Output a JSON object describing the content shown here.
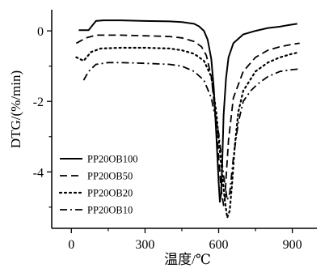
{
  "chart_data": {
    "type": "line",
    "title": "",
    "xlabel": "温度/℃",
    "ylabel": "DTG/(%/min)",
    "xlim": [
      -80,
      1000
    ],
    "ylim": [
      -5.6,
      0.6
    ],
    "xticks": [
      0,
      300,
      600,
      900
    ],
    "yticks": [
      0,
      -2,
      -4
    ],
    "grid": false,
    "legend_position": "bottom-left",
    "colors": {
      "line": "#000000",
      "axis": "#000000",
      "background": "#ffffff"
    },
    "series": [
      {
        "name": "PP20OB100",
        "dash": "solid",
        "x": [
          30,
          70,
          100,
          130,
          200,
          300,
          400,
          450,
          500,
          520,
          540,
          555,
          570,
          580,
          590,
          600,
          605,
          610,
          615,
          620,
          630,
          640,
          660,
          700,
          750,
          800,
          850,
          880,
          900,
          920
        ],
        "y": [
          0.02,
          0.02,
          0.28,
          0.3,
          0.3,
          0.28,
          0.27,
          0.25,
          0.2,
          0.13,
          0.0,
          -0.25,
          -0.8,
          -1.6,
          -2.9,
          -4.3,
          -4.85,
          -4.6,
          -3.6,
          -2.4,
          -1.35,
          -0.75,
          -0.35,
          -0.1,
          0.0,
          0.08,
          0.12,
          0.16,
          0.18,
          0.2
        ]
      },
      {
        "name": "PP20OB50",
        "dash": "dashed",
        "x": [
          20,
          60,
          100,
          200,
          300,
          400,
          450,
          500,
          530,
          550,
          570,
          590,
          600,
          610,
          620,
          625,
          630,
          640,
          660,
          700,
          750,
          800,
          850,
          900,
          930
        ],
        "y": [
          -0.35,
          -0.2,
          -0.12,
          -0.12,
          -0.14,
          -0.16,
          -0.2,
          -0.3,
          -0.45,
          -0.7,
          -1.3,
          -2.6,
          -3.6,
          -4.5,
          -4.95,
          -4.8,
          -4.2,
          -3.1,
          -1.9,
          -1.15,
          -0.75,
          -0.55,
          -0.45,
          -0.38,
          -0.35
        ]
      },
      {
        "name": "PP20OB20",
        "dash": "dotted",
        "x": [
          20,
          50,
          80,
          120,
          200,
          300,
          400,
          450,
          500,
          540,
          570,
          590,
          610,
          625,
          635,
          645,
          655,
          665,
          680,
          700,
          750,
          800,
          850,
          900,
          920
        ],
        "y": [
          -0.75,
          -0.85,
          -0.6,
          -0.5,
          -0.48,
          -0.48,
          -0.5,
          -0.55,
          -0.65,
          -0.85,
          -1.3,
          -2.3,
          -3.8,
          -4.8,
          -5.3,
          -5.1,
          -4.3,
          -3.3,
          -2.3,
          -1.7,
          -1.15,
          -0.9,
          -0.75,
          -0.65,
          -0.62
        ]
      },
      {
        "name": "PP20OB10",
        "dash": "dashdot",
        "x": [
          50,
          70,
          100,
          150,
          200,
          300,
          400,
          450,
          500,
          540,
          570,
          600,
          620,
          635,
          645,
          660,
          680,
          700,
          730,
          760,
          800,
          850,
          900,
          930
        ],
        "y": [
          -1.4,
          -1.15,
          -0.95,
          -0.9,
          -0.9,
          -0.92,
          -0.95,
          -1.0,
          -1.15,
          -1.4,
          -1.9,
          -2.9,
          -4.1,
          -4.8,
          -4.6,
          -3.6,
          -2.6,
          -2.0,
          -1.7,
          -1.5,
          -1.3,
          -1.15,
          -1.1,
          -1.08
        ]
      }
    ]
  }
}
